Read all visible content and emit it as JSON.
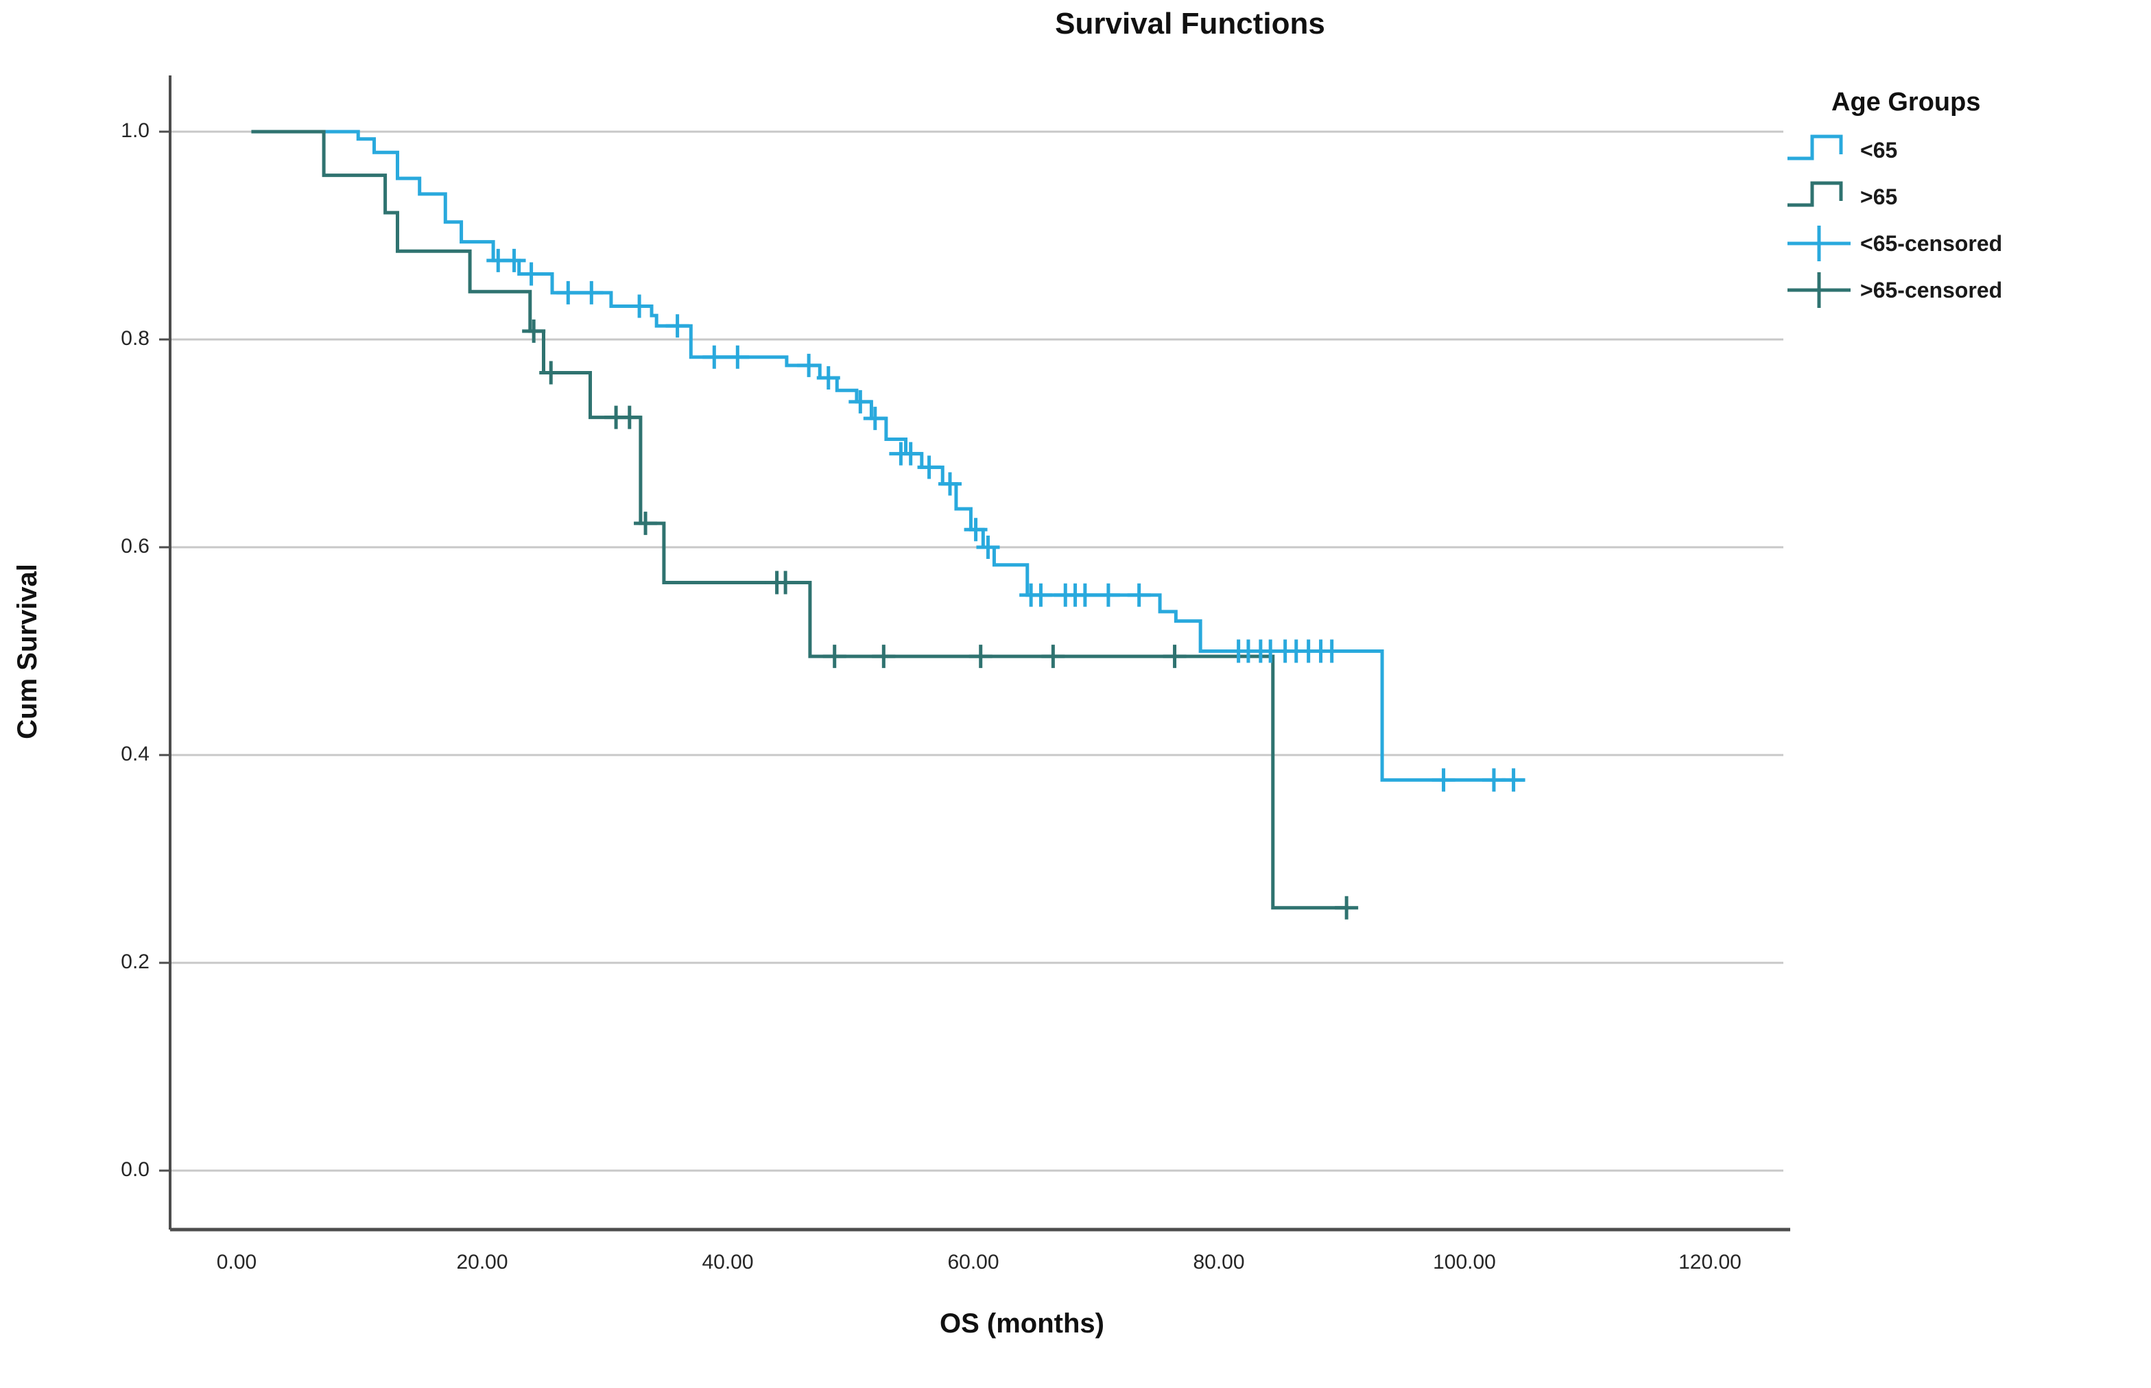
{
  "title": "Survival Functions",
  "x_axis": {
    "label": "OS (months)",
    "ticks": [
      "0.00",
      "20.00",
      "40.00",
      "60.00",
      "80.00",
      "100.00",
      "120.00"
    ],
    "tick_values": [
      0,
      20,
      40,
      60,
      80,
      100,
      120
    ]
  },
  "y_axis": {
    "label": "Cum Survival",
    "ticks": [
      "1.0",
      "0.8",
      "0.6",
      "0.4",
      "0.2",
      "0.0"
    ],
    "tick_values": [
      1.0,
      0.8,
      0.6,
      0.4,
      0.2,
      0.0
    ]
  },
  "legend": {
    "title": "Age Groups",
    "items": [
      {
        "label": "<65",
        "glyph": "step-line",
        "color": "#29a9dd"
      },
      {
        "label": ">65",
        "glyph": "step-line",
        "color": "#2f7370"
      },
      {
        "label": "<65-censored",
        "glyph": "censor-plus",
        "color": "#29a9dd"
      },
      {
        "label": ">65-censored",
        "glyph": "censor-plus",
        "color": "#2f7370"
      }
    ]
  },
  "colors": {
    "curve_under65": "#29a9dd",
    "curve_over65": "#2f7370",
    "gridline": "#c8c8c8",
    "axis": "#4d4d4d",
    "text": "#1a1a1a",
    "background": "#ffffff"
  },
  "chart_data": {
    "type": "line",
    "subtype": "kaplan-meier-step",
    "title": "Survival Functions",
    "xlabel": "OS (months)",
    "ylabel": "Cum Survival",
    "xlim": [
      -5.4,
      126
    ],
    "ylim": [
      0.0,
      1.05
    ],
    "x_tick_values": [
      0,
      20,
      40,
      60,
      80,
      100,
      120
    ],
    "y_gridlines": [
      1.0,
      0.8,
      0.6,
      0.4,
      0.2,
      0.0
    ],
    "grid": "horizontal-only",
    "legend_position": "right",
    "series": [
      {
        "name": "<65",
        "color": "#29a9dd",
        "start": 1.2,
        "end": 104.9,
        "start_survival": 1.0,
        "steps": [
          [
            9.9,
            0.993
          ],
          [
            11.2,
            0.98
          ],
          [
            13.1,
            0.955
          ],
          [
            14.9,
            0.94
          ],
          [
            17.0,
            0.913
          ],
          [
            18.3,
            0.894
          ],
          [
            20.9,
            0.876
          ],
          [
            23.0,
            0.863
          ],
          [
            25.7,
            0.845
          ],
          [
            30.5,
            0.832
          ],
          [
            33.8,
            0.823
          ],
          [
            34.2,
            0.813
          ],
          [
            37.0,
            0.783
          ],
          [
            44.8,
            0.775
          ],
          [
            47.5,
            0.763
          ],
          [
            48.9,
            0.751
          ],
          [
            50.5,
            0.74
          ],
          [
            51.7,
            0.724
          ],
          [
            52.9,
            0.704
          ],
          [
            54.5,
            0.69
          ],
          [
            55.8,
            0.677
          ],
          [
            57.5,
            0.661
          ],
          [
            58.6,
            0.637
          ],
          [
            59.8,
            0.617
          ],
          [
            60.8,
            0.6
          ],
          [
            61.7,
            0.583
          ],
          [
            64.4,
            0.554
          ],
          [
            75.2,
            0.538
          ],
          [
            76.5,
            0.529
          ],
          [
            78.5,
            0.5
          ],
          [
            93.3,
            0.376
          ]
        ],
        "censored": [
          [
            21.3,
            0.876
          ],
          [
            22.6,
            0.876
          ],
          [
            24.0,
            0.863
          ],
          [
            27.0,
            0.845
          ],
          [
            28.9,
            0.845
          ],
          [
            32.8,
            0.832
          ],
          [
            35.9,
            0.813
          ],
          [
            38.9,
            0.783
          ],
          [
            40.8,
            0.783
          ],
          [
            46.6,
            0.775
          ],
          [
            48.2,
            0.763
          ],
          [
            50.8,
            0.74
          ],
          [
            52.0,
            0.724
          ],
          [
            54.1,
            0.69
          ],
          [
            54.9,
            0.69
          ],
          [
            56.4,
            0.677
          ],
          [
            58.1,
            0.661
          ],
          [
            60.2,
            0.617
          ],
          [
            61.2,
            0.6
          ],
          [
            64.7,
            0.554
          ],
          [
            65.5,
            0.554
          ],
          [
            67.5,
            0.554
          ],
          [
            68.3,
            0.554
          ],
          [
            69.1,
            0.554
          ],
          [
            71.0,
            0.554
          ],
          [
            73.5,
            0.554
          ],
          [
            81.6,
            0.5
          ],
          [
            82.4,
            0.5
          ],
          [
            83.4,
            0.5
          ],
          [
            84.2,
            0.5
          ],
          [
            85.4,
            0.5
          ],
          [
            86.3,
            0.5
          ],
          [
            87.3,
            0.5
          ],
          [
            88.3,
            0.5
          ],
          [
            89.2,
            0.5
          ],
          [
            98.3,
            0.376
          ],
          [
            102.4,
            0.376
          ],
          [
            104.0,
            0.376
          ]
        ]
      },
      {
        "name": ">65",
        "color": "#2f7370",
        "start": 1.2,
        "end": 90.4,
        "start_survival": 1.0,
        "steps": [
          [
            7.1,
            0.958
          ],
          [
            12.1,
            0.922
          ],
          [
            13.1,
            0.885
          ],
          [
            19.0,
            0.846
          ],
          [
            23.9,
            0.808
          ],
          [
            25.0,
            0.768
          ],
          [
            28.8,
            0.725
          ],
          [
            32.9,
            0.623
          ],
          [
            34.8,
            0.566
          ],
          [
            46.7,
            0.495
          ],
          [
            84.4,
            0.253
          ]
        ],
        "censored": [
          [
            24.2,
            0.808
          ],
          [
            25.6,
            0.768
          ],
          [
            30.9,
            0.725
          ],
          [
            32.0,
            0.725
          ],
          [
            33.3,
            0.623
          ],
          [
            44.0,
            0.566
          ],
          [
            44.7,
            0.566
          ],
          [
            48.7,
            0.495
          ],
          [
            52.7,
            0.495
          ],
          [
            60.6,
            0.495
          ],
          [
            66.5,
            0.495
          ],
          [
            76.4,
            0.495
          ],
          [
            90.4,
            0.253
          ]
        ]
      }
    ]
  }
}
